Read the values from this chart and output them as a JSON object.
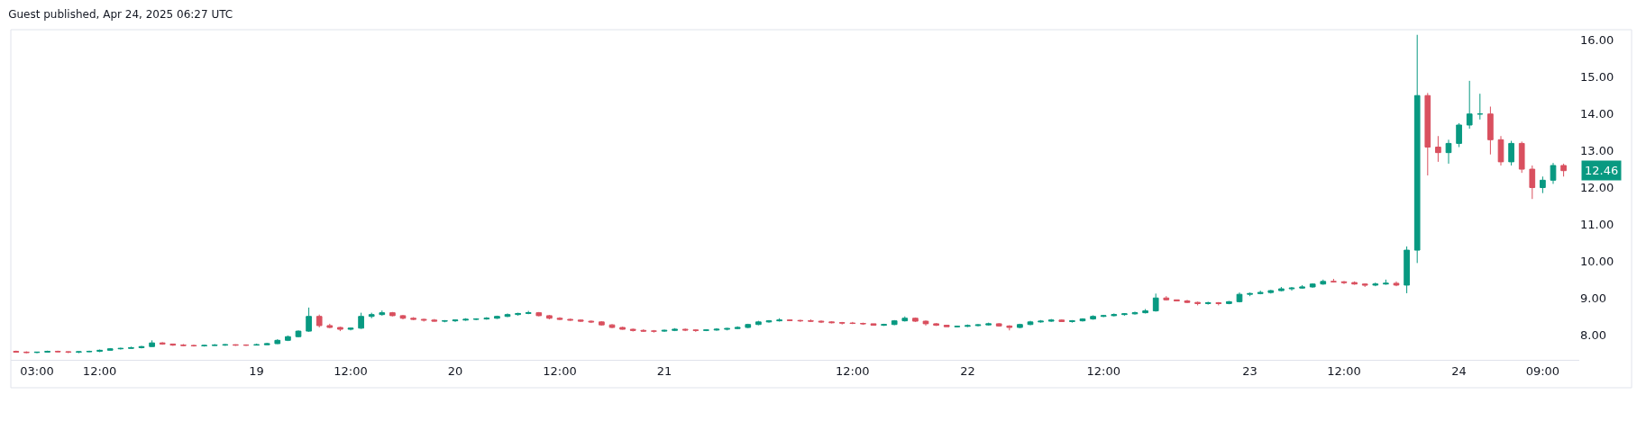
{
  "chart_data": {
    "type": "candlestick",
    "title": "Guest published, Apr 24, 2025 06:27 UTC",
    "categories": [
      null,
      null,
      "03:00",
      null,
      null,
      null,
      null,
      null,
      "12:00",
      null,
      null,
      null,
      null,
      null,
      null,
      null,
      null,
      null,
      null,
      null,
      null,
      null,
      null,
      "19",
      null,
      null,
      null,
      null,
      null,
      null,
      null,
      null,
      "12:00",
      null,
      null,
      null,
      null,
      null,
      null,
      null,
      null,
      null,
      "20",
      null,
      null,
      null,
      null,
      null,
      null,
      null,
      null,
      null,
      "12:00",
      null,
      null,
      null,
      null,
      null,
      null,
      null,
      null,
      null,
      "21",
      null,
      null,
      null,
      null,
      null,
      null,
      null,
      null,
      null,
      null,
      null,
      null,
      null,
      null,
      null,
      null,
      null,
      "12:00",
      null,
      null,
      null,
      null,
      null,
      null,
      null,
      null,
      null,
      null,
      "22",
      null,
      null,
      null,
      null,
      null,
      null,
      null,
      null,
      null,
      null,
      null,
      null,
      "12:00",
      null,
      null,
      null,
      null,
      null,
      null,
      null,
      null,
      null,
      null,
      null,
      null,
      null,
      "23",
      null,
      null,
      null,
      null,
      null,
      null,
      null,
      null,
      "12:00",
      null,
      null,
      null,
      null,
      null,
      null,
      null,
      null,
      null,
      null,
      "24",
      null,
      null,
      null,
      null,
      null,
      null,
      null,
      "09:00",
      null,
      null
    ],
    "ohlc": [
      [
        7.55,
        7.57,
        7.52,
        7.53
      ],
      [
        7.53,
        7.55,
        7.5,
        7.52
      ],
      [
        7.52,
        7.54,
        7.5,
        7.53
      ],
      [
        7.53,
        7.57,
        7.52,
        7.55
      ],
      [
        7.55,
        7.57,
        7.53,
        7.54
      ],
      [
        7.54,
        7.55,
        7.5,
        7.53
      ],
      [
        7.53,
        7.55,
        7.5,
        7.54
      ],
      [
        7.54,
        7.57,
        7.53,
        7.55
      ],
      [
        7.55,
        7.6,
        7.53,
        7.58
      ],
      [
        7.58,
        7.64,
        7.57,
        7.62
      ],
      [
        7.62,
        7.65,
        7.6,
        7.63
      ],
      [
        7.63,
        7.68,
        7.62,
        7.65
      ],
      [
        7.65,
        7.7,
        7.63,
        7.68
      ],
      [
        7.68,
        7.85,
        7.67,
        7.78
      ],
      [
        7.78,
        7.8,
        7.73,
        7.75
      ],
      [
        7.75,
        7.76,
        7.7,
        7.72
      ],
      [
        7.72,
        7.75,
        7.69,
        7.71
      ],
      [
        7.71,
        7.73,
        7.68,
        7.7
      ],
      [
        7.7,
        7.72,
        7.68,
        7.71
      ],
      [
        7.71,
        7.75,
        7.7,
        7.72
      ],
      [
        7.72,
        7.75,
        7.7,
        7.73
      ],
      [
        7.73,
        7.74,
        7.7,
        7.72
      ],
      [
        7.72,
        7.74,
        7.7,
        7.72
      ],
      [
        7.72,
        7.76,
        7.71,
        7.73
      ],
      [
        7.73,
        7.78,
        7.72,
        7.76
      ],
      [
        7.76,
        7.88,
        7.75,
        7.85
      ],
      [
        7.85,
        7.98,
        7.83,
        7.95
      ],
      [
        7.95,
        8.12,
        7.93,
        8.1
      ],
      [
        8.1,
        8.74,
        8.08,
        8.5
      ],
      [
        8.5,
        8.55,
        8.2,
        8.25
      ],
      [
        8.25,
        8.3,
        8.18,
        8.2
      ],
      [
        8.2,
        8.22,
        8.1,
        8.15
      ],
      [
        8.15,
        8.2,
        8.12,
        8.18
      ],
      [
        8.18,
        8.6,
        8.16,
        8.5
      ],
      [
        8.5,
        8.6,
        8.45,
        8.55
      ],
      [
        8.55,
        8.66,
        8.52,
        8.6
      ],
      [
        8.6,
        8.62,
        8.5,
        8.52
      ],
      [
        8.52,
        8.54,
        8.42,
        8.45
      ],
      [
        8.45,
        8.48,
        8.4,
        8.42
      ],
      [
        8.42,
        8.44,
        8.36,
        8.4
      ],
      [
        8.4,
        8.43,
        8.36,
        8.37
      ],
      [
        8.37,
        8.4,
        8.34,
        8.38
      ],
      [
        8.38,
        8.41,
        8.35,
        8.4
      ],
      [
        8.4,
        8.45,
        8.38,
        8.42
      ],
      [
        8.42,
        8.45,
        8.4,
        8.43
      ],
      [
        8.43,
        8.48,
        8.41,
        8.45
      ],
      [
        8.45,
        8.52,
        8.43,
        8.5
      ],
      [
        8.5,
        8.58,
        8.48,
        8.55
      ],
      [
        8.55,
        8.6,
        8.52,
        8.58
      ],
      [
        8.58,
        8.65,
        8.56,
        8.6
      ],
      [
        8.6,
        8.62,
        8.5,
        8.52
      ],
      [
        8.52,
        8.54,
        8.42,
        8.45
      ],
      [
        8.45,
        8.48,
        8.4,
        8.42
      ],
      [
        8.42,
        8.44,
        8.38,
        8.4
      ],
      [
        8.4,
        8.42,
        8.35,
        8.37
      ],
      [
        8.37,
        8.39,
        8.32,
        8.35
      ],
      [
        8.35,
        8.37,
        8.25,
        8.27
      ],
      [
        8.27,
        8.29,
        8.18,
        8.2
      ],
      [
        8.2,
        8.22,
        8.14,
        8.15
      ],
      [
        8.15,
        8.17,
        8.09,
        8.12
      ],
      [
        8.12,
        8.15,
        8.08,
        8.1
      ],
      [
        8.1,
        8.13,
        8.06,
        8.1
      ],
      [
        8.1,
        8.14,
        8.08,
        8.12
      ],
      [
        8.12,
        8.18,
        8.1,
        8.15
      ],
      [
        8.15,
        8.17,
        8.1,
        8.13
      ],
      [
        8.13,
        8.15,
        8.08,
        8.12
      ],
      [
        8.12,
        8.15,
        8.1,
        8.13
      ],
      [
        8.13,
        8.18,
        8.11,
        8.15
      ],
      [
        8.15,
        8.19,
        8.12,
        8.17
      ],
      [
        8.17,
        8.23,
        8.15,
        8.2
      ],
      [
        8.2,
        8.3,
        8.18,
        8.28
      ],
      [
        8.28,
        8.38,
        8.26,
        8.35
      ],
      [
        8.35,
        8.4,
        8.33,
        8.38
      ],
      [
        8.38,
        8.45,
        8.36,
        8.4
      ],
      [
        8.4,
        8.42,
        8.37,
        8.39
      ],
      [
        8.39,
        8.41,
        8.35,
        8.38
      ],
      [
        8.38,
        8.42,
        8.35,
        8.37
      ],
      [
        8.37,
        8.39,
        8.32,
        8.35
      ],
      [
        8.35,
        8.37,
        8.31,
        8.33
      ],
      [
        8.33,
        8.35,
        8.28,
        8.32
      ],
      [
        8.32,
        8.35,
        8.29,
        8.31
      ],
      [
        8.31,
        8.33,
        8.27,
        8.3
      ],
      [
        8.3,
        8.3,
        8.26,
        8.26
      ],
      [
        8.26,
        8.3,
        8.24,
        8.28
      ],
      [
        8.28,
        8.4,
        8.26,
        8.38
      ],
      [
        8.38,
        8.5,
        8.36,
        8.45
      ],
      [
        8.45,
        8.47,
        8.35,
        8.37
      ],
      [
        8.37,
        8.39,
        8.25,
        8.3
      ],
      [
        8.3,
        8.32,
        8.24,
        8.26
      ],
      [
        8.26,
        8.26,
        8.22,
        8.22
      ],
      [
        8.22,
        8.25,
        8.2,
        8.23
      ],
      [
        8.23,
        8.28,
        8.21,
        8.25
      ],
      [
        8.25,
        8.29,
        8.23,
        8.27
      ],
      [
        8.27,
        8.33,
        8.25,
        8.3
      ],
      [
        8.3,
        8.32,
        8.22,
        8.24
      ],
      [
        8.24,
        8.26,
        8.12,
        8.2
      ],
      [
        8.2,
        8.3,
        8.18,
        8.28
      ],
      [
        8.28,
        8.38,
        8.26,
        8.35
      ],
      [
        8.35,
        8.4,
        8.33,
        8.37
      ],
      [
        8.37,
        8.43,
        8.35,
        8.4
      ],
      [
        8.4,
        8.42,
        8.35,
        8.36
      ],
      [
        8.36,
        8.4,
        8.33,
        8.38
      ],
      [
        8.38,
        8.45,
        8.36,
        8.43
      ],
      [
        8.43,
        8.53,
        8.41,
        8.5
      ],
      [
        8.5,
        8.54,
        8.48,
        8.52
      ],
      [
        8.52,
        8.58,
        8.5,
        8.55
      ],
      [
        8.55,
        8.59,
        8.52,
        8.57
      ],
      [
        8.57,
        8.63,
        8.55,
        8.6
      ],
      [
        8.6,
        8.7,
        8.58,
        8.65
      ],
      [
        8.65,
        9.12,
        8.63,
        9.0
      ],
      [
        9.0,
        9.05,
        8.93,
        8.95
      ],
      [
        8.95,
        8.95,
        8.92,
        8.92
      ],
      [
        8.92,
        8.95,
        8.86,
        8.88
      ],
      [
        8.88,
        8.9,
        8.8,
        8.85
      ],
      [
        8.85,
        8.9,
        8.82,
        8.87
      ],
      [
        8.87,
        8.89,
        8.8,
        8.85
      ],
      [
        8.85,
        8.92,
        8.83,
        8.9
      ],
      [
        8.9,
        9.15,
        8.88,
        9.1
      ],
      [
        9.1,
        9.15,
        9.05,
        9.12
      ],
      [
        9.12,
        9.2,
        9.1,
        9.15
      ],
      [
        9.15,
        9.22,
        9.12,
        9.2
      ],
      [
        9.2,
        9.3,
        9.18,
        9.25
      ],
      [
        9.25,
        9.3,
        9.2,
        9.27
      ],
      [
        9.27,
        9.35,
        9.25,
        9.3
      ],
      [
        9.3,
        9.4,
        9.28,
        9.38
      ],
      [
        9.38,
        9.5,
        9.36,
        9.45
      ],
      [
        9.45,
        9.52,
        9.42,
        9.44
      ],
      [
        9.44,
        9.46,
        9.38,
        9.42
      ],
      [
        9.42,
        9.45,
        9.36,
        9.38
      ],
      [
        9.38,
        9.4,
        9.3,
        9.35
      ],
      [
        9.35,
        9.42,
        9.32,
        9.38
      ],
      [
        9.38,
        9.5,
        9.36,
        9.4
      ],
      [
        9.4,
        9.45,
        9.32,
        9.35
      ],
      [
        9.35,
        10.4,
        9.13,
        10.3
      ],
      [
        10.3,
        16.15,
        9.95,
        14.5
      ],
      [
        14.5,
        14.57,
        12.33,
        13.1
      ],
      [
        13.1,
        13.4,
        12.7,
        12.95
      ],
      [
        12.95,
        13.3,
        12.65,
        13.2
      ],
      [
        13.2,
        13.75,
        13.1,
        13.7
      ],
      [
        13.7,
        14.9,
        13.6,
        14.0
      ],
      [
        14.0,
        14.55,
        13.85,
        14.0
      ],
      [
        14.0,
        14.2,
        12.9,
        13.3
      ],
      [
        13.3,
        13.4,
        12.6,
        12.7
      ],
      [
        12.7,
        13.27,
        12.6,
        13.2
      ],
      [
        13.2,
        13.25,
        12.4,
        12.5
      ],
      [
        12.5,
        12.6,
        11.69,
        12.0
      ],
      [
        12.0,
        12.3,
        11.85,
        12.2
      ],
      [
        12.2,
        12.67,
        12.1,
        12.6
      ],
      [
        12.6,
        12.65,
        12.3,
        12.46
      ]
    ],
    "ylim": [
      7.32,
      16.29
    ],
    "yticks": [
      {
        "value": 8,
        "label": "8.00"
      },
      {
        "value": 9,
        "label": "9.00"
      },
      {
        "value": 10,
        "label": "10.00"
      },
      {
        "value": 11,
        "label": "11.00"
      },
      {
        "value": 12,
        "label": "12.00"
      },
      {
        "value": 13,
        "label": "13.00"
      },
      {
        "value": 14,
        "label": "14.00"
      },
      {
        "value": 15,
        "label": "15.00"
      },
      {
        "value": 16,
        "label": "16.00"
      }
    ],
    "annotations": [
      "12.46"
    ],
    "tick_labels": true
  }
}
